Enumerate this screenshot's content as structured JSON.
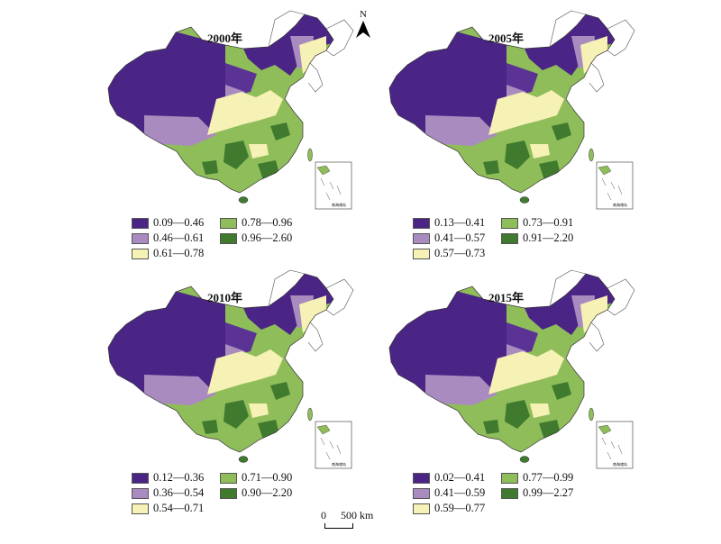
{
  "north_label": "N",
  "scale": {
    "zero": "0",
    "distance": "500 km"
  },
  "inset_label": "南海诸岛",
  "colors": [
    "#4b2586",
    "#a98bc0",
    "#f6f1b4",
    "#8fbd5a",
    "#3f7a2e"
  ],
  "panels": [
    {
      "year": "2000年",
      "legend": [
        "0.09—0.46",
        "0.46—0.61",
        "0.61—0.78",
        "0.78—0.96",
        "0.96—2.60"
      ]
    },
    {
      "year": "2005年",
      "legend": [
        "0.13—0.41",
        "0.41—0.57",
        "0.57—0.73",
        "0.73—0.91",
        "0.91—2.20"
      ]
    },
    {
      "year": "2010年",
      "legend": [
        "0.12—0.36",
        "0.36—0.54",
        "0.54—0.71",
        "0.71—0.90",
        "0.90—2.20"
      ]
    },
    {
      "year": "2015年",
      "legend": [
        "0.02—0.41",
        "0.41—0.59",
        "0.59—0.77",
        "0.77—0.99",
        "0.99—2.27"
      ]
    }
  ]
}
